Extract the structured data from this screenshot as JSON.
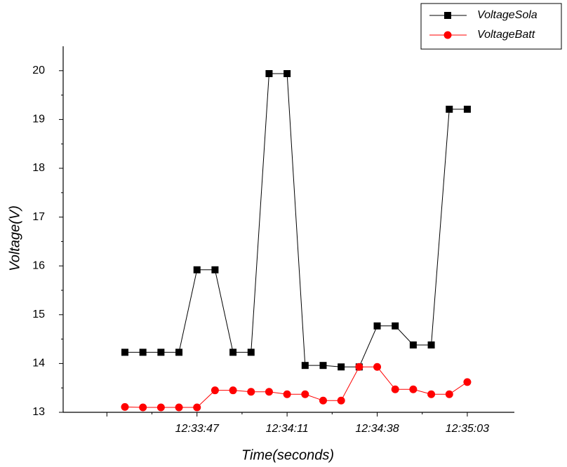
{
  "chart_data": {
    "type": "line",
    "x_label": "Time(seconds)",
    "y_label": "Voltage(V)",
    "categories": [
      null,
      null,
      null,
      null,
      "12:33:47",
      null,
      null,
      null,
      null,
      "12:34:11",
      null,
      null,
      null,
      null,
      "12:34:38",
      null,
      null,
      null,
      null,
      "12:35:03"
    ],
    "series": [
      {
        "name": "VoltageSola",
        "color": "#000000",
        "marker": "square",
        "values": [
          14.23,
          14.23,
          14.23,
          14.23,
          15.92,
          15.92,
          14.23,
          14.23,
          19.94,
          19.94,
          13.96,
          13.96,
          13.93,
          13.93,
          14.77,
          14.77,
          14.38,
          14.38,
          19.21,
          19.21
        ]
      },
      {
        "name": "VoltageBatt",
        "color": "#ff0000",
        "marker": "circle",
        "values": [
          13.11,
          13.1,
          13.1,
          13.1,
          13.1,
          13.45,
          13.45,
          13.42,
          13.42,
          13.37,
          13.37,
          13.24,
          13.24,
          13.93,
          13.93,
          13.47,
          13.47,
          13.37,
          13.37,
          13.62
        ]
      }
    ],
    "ylim": [
      13,
      20.5
    ],
    "yticks": [
      13,
      14,
      15,
      16,
      17,
      18,
      19,
      20
    ],
    "legend": "top-right"
  }
}
